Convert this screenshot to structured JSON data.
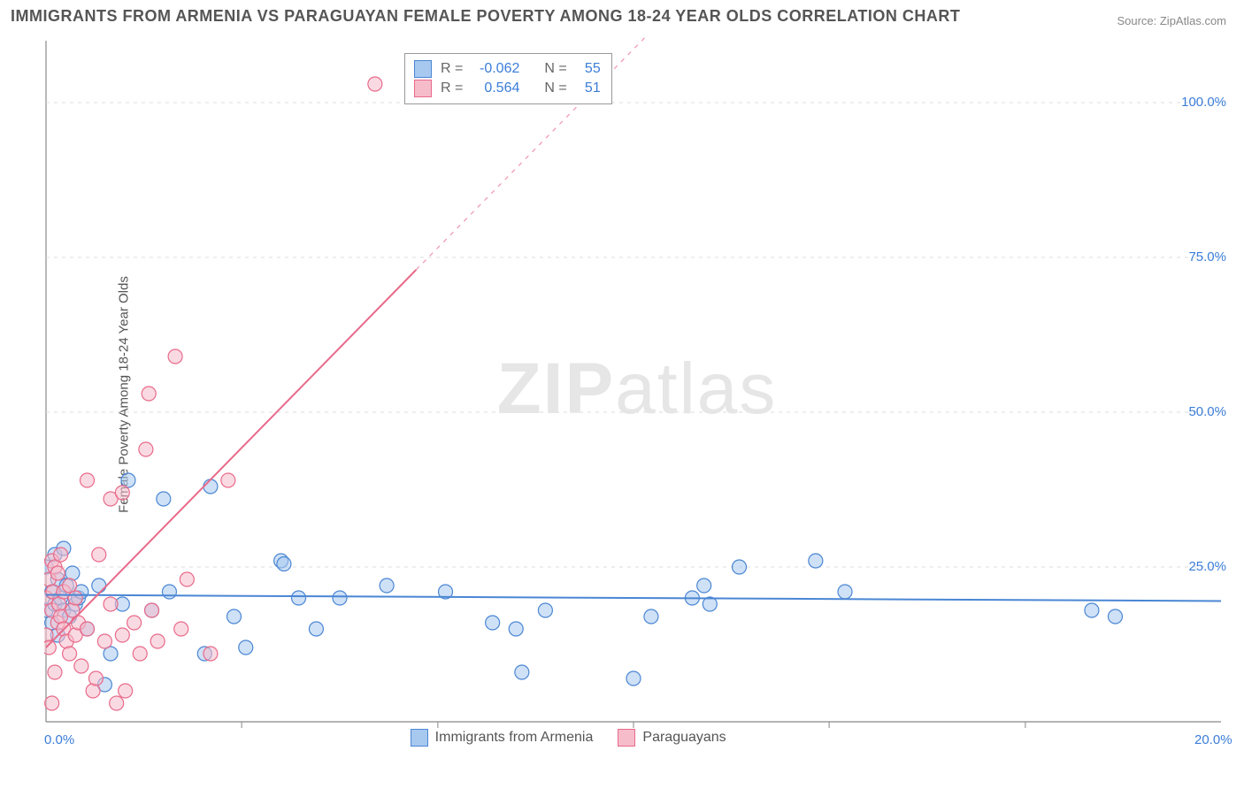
{
  "title": "IMMIGRANTS FROM ARMENIA VS PARAGUAYAN FEMALE POVERTY AMONG 18-24 YEAR OLDS CORRELATION CHART",
  "source": "Source: ZipAtlas.com",
  "y_axis_label": "Female Poverty Among 18-24 Year Olds",
  "watermark_bold": "ZIP",
  "watermark_light": "atlas",
  "chart": {
    "type": "scatter-correlation",
    "background_color": "#ffffff",
    "grid_color": "#dddddd",
    "axis_color": "#888888",
    "xlim": [
      0,
      20
    ],
    "ylim": [
      0,
      110
    ],
    "x_ticks": [
      0,
      20
    ],
    "x_tick_labels": [
      "0.0%",
      "20.0%"
    ],
    "x_minor_ticks": [
      3.33,
      6.67,
      10,
      13.33,
      16.67
    ],
    "y_ticks": [
      25,
      50,
      75,
      100
    ],
    "y_tick_labels": [
      "25.0%",
      "50.0%",
      "75.0%",
      "100.0%"
    ],
    "tick_label_color": "#3b7dd8",
    "tick_label_fontsize": 15,
    "marker_radius": 8,
    "marker_opacity": 0.55,
    "line_width": 2,
    "series": [
      {
        "name": "Immigrants from Armenia",
        "R_label": "R =",
        "R": "-0.062",
        "N_label": "N =",
        "N": "55",
        "fill": "#a7c8ef",
        "stroke": "#4a86d4",
        "trend": {
          "x1": 0,
          "y1": 20.5,
          "x2": 20,
          "y2": 19.5,
          "dash": false,
          "extend_dash_to": null
        },
        "points": [
          [
            0.0,
            18
          ],
          [
            0.0,
            25
          ],
          [
            0.1,
            21
          ],
          [
            0.1,
            16
          ],
          [
            0.15,
            27
          ],
          [
            0.15,
            19
          ],
          [
            0.2,
            23
          ],
          [
            0.2,
            14
          ],
          [
            0.25,
            20
          ],
          [
            0.3,
            18
          ],
          [
            0.3,
            28
          ],
          [
            0.35,
            22
          ],
          [
            0.4,
            17
          ],
          [
            0.45,
            24
          ],
          [
            0.5,
            19
          ],
          [
            0.55,
            20
          ],
          [
            0.6,
            21
          ],
          [
            0.7,
            15
          ],
          [
            0.9,
            22
          ],
          [
            1.0,
            6
          ],
          [
            1.1,
            11
          ],
          [
            1.3,
            19
          ],
          [
            1.4,
            39
          ],
          [
            1.8,
            18
          ],
          [
            2.0,
            36
          ],
          [
            2.1,
            21
          ],
          [
            2.7,
            11
          ],
          [
            2.8,
            38
          ],
          [
            3.2,
            17
          ],
          [
            3.4,
            12
          ],
          [
            4.0,
            26
          ],
          [
            4.05,
            25.5
          ],
          [
            4.3,
            20
          ],
          [
            4.6,
            15
          ],
          [
            5.0,
            20
          ],
          [
            5.8,
            22
          ],
          [
            6.8,
            21
          ],
          [
            7.6,
            16
          ],
          [
            8.0,
            15
          ],
          [
            8.1,
            8
          ],
          [
            8.5,
            18
          ],
          [
            10.0,
            7
          ],
          [
            10.3,
            17
          ],
          [
            11.0,
            20
          ],
          [
            11.2,
            22
          ],
          [
            11.3,
            19
          ],
          [
            11.8,
            25
          ],
          [
            13.1,
            26
          ],
          [
            13.6,
            21
          ],
          [
            17.8,
            18
          ],
          [
            18.2,
            17
          ]
        ]
      },
      {
        "name": "Paraguayans",
        "R_label": "R =",
        "R": "0.564",
        "N_label": "N =",
        "N": "51",
        "fill": "#f6bcca",
        "stroke": "#e86a8a",
        "trend": {
          "x1": 0,
          "y1": 12,
          "x2": 6.3,
          "y2": 73,
          "dash": false,
          "extend_dash_to": [
            11.7,
            125
          ]
        },
        "points": [
          [
            0.0,
            14
          ],
          [
            0.0,
            20
          ],
          [
            0.05,
            12
          ],
          [
            0.05,
            23
          ],
          [
            0.1,
            3
          ],
          [
            0.1,
            26
          ],
          [
            0.1,
            18
          ],
          [
            0.12,
            21
          ],
          [
            0.15,
            8
          ],
          [
            0.15,
            25
          ],
          [
            0.2,
            16
          ],
          [
            0.2,
            24
          ],
          [
            0.22,
            19
          ],
          [
            0.25,
            17
          ],
          [
            0.25,
            27
          ],
          [
            0.3,
            15
          ],
          [
            0.3,
            21
          ],
          [
            0.35,
            13
          ],
          [
            0.4,
            11
          ],
          [
            0.4,
            22
          ],
          [
            0.45,
            18
          ],
          [
            0.5,
            14
          ],
          [
            0.5,
            20
          ],
          [
            0.55,
            16
          ],
          [
            0.6,
            9
          ],
          [
            0.7,
            15
          ],
          [
            0.7,
            39
          ],
          [
            0.8,
            5
          ],
          [
            0.85,
            7
          ],
          [
            0.9,
            27
          ],
          [
            1.0,
            13
          ],
          [
            1.1,
            19
          ],
          [
            1.1,
            36
          ],
          [
            1.2,
            3
          ],
          [
            1.3,
            37
          ],
          [
            1.3,
            14
          ],
          [
            1.35,
            5
          ],
          [
            1.5,
            16
          ],
          [
            1.6,
            11
          ],
          [
            1.7,
            44
          ],
          [
            1.75,
            53
          ],
          [
            1.8,
            18
          ],
          [
            1.9,
            13
          ],
          [
            2.2,
            59
          ],
          [
            2.3,
            15
          ],
          [
            2.4,
            23
          ],
          [
            2.8,
            11
          ],
          [
            3.1,
            39
          ],
          [
            5.6,
            103
          ]
        ]
      }
    ]
  },
  "legend_bottom": {
    "items": [
      {
        "swatch_fill": "#a7c8ef",
        "swatch_stroke": "#4a86d4",
        "label": "Immigrants from Armenia"
      },
      {
        "swatch_fill": "#f6bcca",
        "swatch_stroke": "#e86a8a",
        "label": "Paraguayans"
      }
    ]
  }
}
